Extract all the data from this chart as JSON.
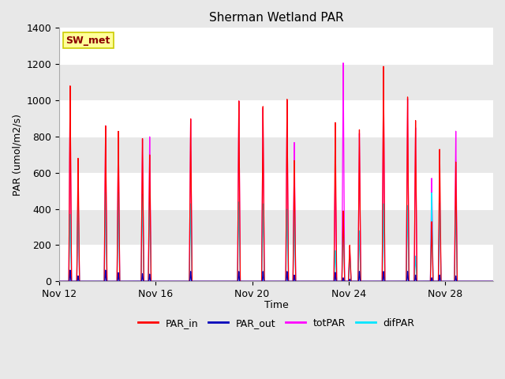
{
  "title": "Sherman Wetland PAR",
  "ylabel": "PAR (umol/m2/s)",
  "xlabel": "Time",
  "ylim": [
    0,
    1400
  ],
  "annotation": "SW_met",
  "fig_bg_color": "#e8e8e8",
  "plot_bg_color": "#f0f0f0",
  "colors": {
    "PAR_in": "#ff0000",
    "PAR_out": "#0000bb",
    "totPAR": "#ff00ff",
    "difPAR": "#00e5ff"
  },
  "num_days": 18,
  "peaks": [
    {
      "day": 0.45,
      "PAR_in": 1080,
      "PAR_out": 62,
      "totPAR": 1060,
      "difPAR": 370
    },
    {
      "day": 0.78,
      "PAR_in": 680,
      "PAR_out": 30,
      "totPAR": 540,
      "difPAR": 430
    },
    {
      "day": 1.92,
      "PAR_in": 860,
      "PAR_out": 62,
      "totPAR": 860,
      "difPAR": 490
    },
    {
      "day": 2.45,
      "PAR_in": 830,
      "PAR_out": 48,
      "totPAR": 820,
      "difPAR": 490
    },
    {
      "day": 3.45,
      "PAR_in": 790,
      "PAR_out": 42,
      "totPAR": 790,
      "difPAR": 480
    },
    {
      "day": 3.75,
      "PAR_in": 700,
      "PAR_out": 40,
      "totPAR": 800,
      "difPAR": 490
    },
    {
      "day": 5.45,
      "PAR_in": 900,
      "PAR_out": 55,
      "totPAR": 900,
      "difPAR": 430
    },
    {
      "day": 7.45,
      "PAR_in": 1000,
      "PAR_out": 55,
      "totPAR": 1000,
      "difPAR": 440
    },
    {
      "day": 8.45,
      "PAR_in": 970,
      "PAR_out": 55,
      "totPAR": 960,
      "difPAR": 430
    },
    {
      "day": 9.45,
      "PAR_in": 1010,
      "PAR_out": 55,
      "totPAR": 1000,
      "difPAR": 400
    },
    {
      "day": 9.75,
      "PAR_in": 670,
      "PAR_out": 35,
      "totPAR": 770,
      "difPAR": 390
    },
    {
      "day": 11.45,
      "PAR_in": 880,
      "PAR_out": 50,
      "totPAR": 630,
      "difPAR": 170
    },
    {
      "day": 11.78,
      "PAR_in": 390,
      "PAR_out": 20,
      "totPAR": 1210,
      "difPAR": 360
    },
    {
      "day": 12.05,
      "PAR_in": 200,
      "PAR_out": 12,
      "totPAR": 170,
      "difPAR": 130
    },
    {
      "day": 12.45,
      "PAR_in": 840,
      "PAR_out": 55,
      "totPAR": 820,
      "difPAR": 280
    },
    {
      "day": 13.45,
      "PAR_in": 1190,
      "PAR_out": 55,
      "totPAR": 1170,
      "difPAR": 430
    },
    {
      "day": 14.45,
      "PAR_in": 1020,
      "PAR_out": 55,
      "totPAR": 1010,
      "difPAR": 420
    },
    {
      "day": 14.78,
      "PAR_in": 890,
      "PAR_out": 35,
      "totPAR": 850,
      "difPAR": 140
    },
    {
      "day": 15.45,
      "PAR_in": 330,
      "PAR_out": 20,
      "totPAR": 570,
      "difPAR": 490
    },
    {
      "day": 15.78,
      "PAR_in": 730,
      "PAR_out": 35,
      "totPAR": 500,
      "difPAR": 430
    },
    {
      "day": 16.45,
      "PAR_in": 660,
      "PAR_out": 30,
      "totPAR": 830,
      "difPAR": 430
    }
  ],
  "xtick_labels": [
    "Nov 12",
    "Nov 16",
    "Nov 20",
    "Nov 24",
    "Nov 28"
  ],
  "xtick_days": [
    0,
    4,
    8,
    12,
    16
  ],
  "ytick_vals": [
    0,
    200,
    400,
    600,
    800,
    1000,
    1200,
    1400
  ]
}
